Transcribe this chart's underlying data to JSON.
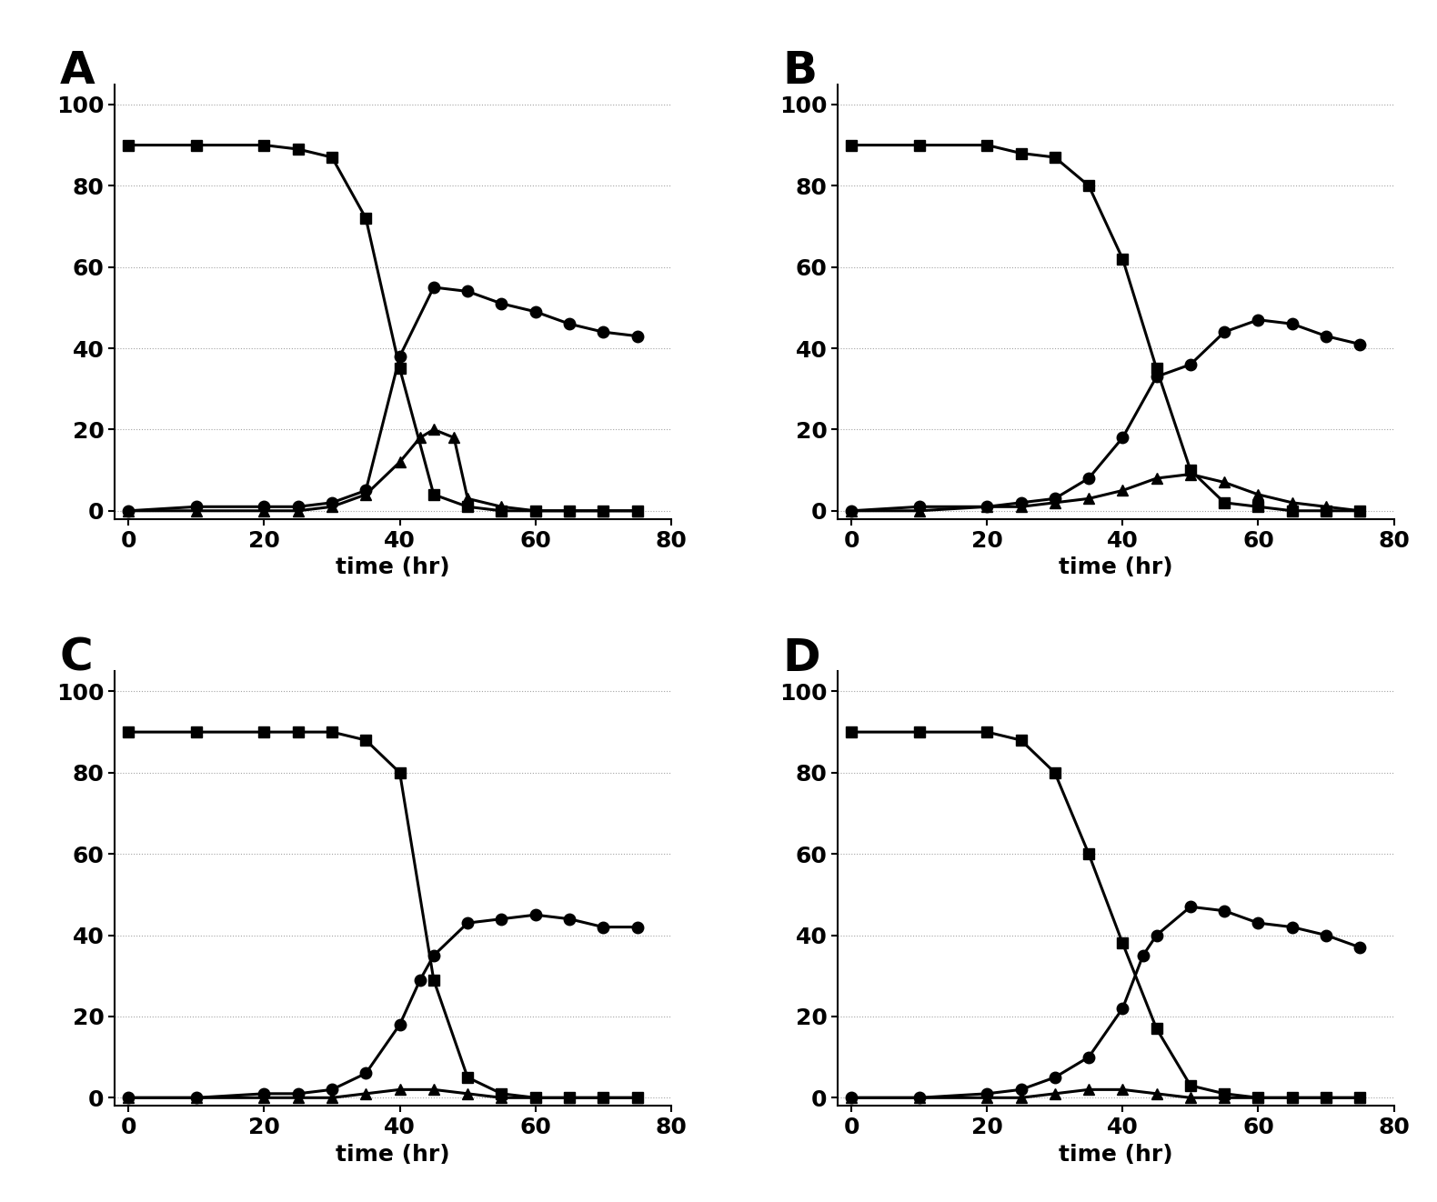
{
  "panels": [
    "A",
    "B",
    "C",
    "D"
  ],
  "background_color": "#ffffff",
  "grid_color": "#999999",
  "line_color": "#000000",
  "xlim": [
    -2,
    80
  ],
  "ylim": [
    -2,
    105
  ],
  "xticks": [
    0,
    20,
    40,
    60,
    80
  ],
  "yticks": [
    0,
    20,
    40,
    60,
    80,
    100
  ],
  "xlabel": "time (hr)",
  "panel_label_fontsize": 36,
  "axis_label_fontsize": 18,
  "tick_fontsize": 18,
  "linewidth": 2.2,
  "markersize": 9,
  "A": {
    "squares": {
      "x": [
        0,
        10,
        20,
        25,
        30,
        35,
        40,
        45,
        50,
        55,
        60,
        65,
        70,
        75
      ],
      "y": [
        90,
        90,
        90,
        89,
        87,
        72,
        35,
        4,
        1,
        0,
        0,
        0,
        0,
        0
      ]
    },
    "circles": {
      "x": [
        0,
        10,
        20,
        25,
        30,
        35,
        40,
        45,
        50,
        55,
        60,
        65,
        70,
        75
      ],
      "y": [
        0,
        1,
        1,
        1,
        2,
        5,
        38,
        55,
        54,
        51,
        49,
        46,
        44,
        43
      ]
    },
    "triangles": {
      "x": [
        0,
        10,
        20,
        25,
        30,
        35,
        40,
        43,
        45,
        48,
        50,
        55,
        60,
        65,
        70,
        75
      ],
      "y": [
        0,
        0,
        0,
        0,
        1,
        4,
        12,
        18,
        20,
        18,
        3,
        1,
        0,
        0,
        0,
        0
      ]
    }
  },
  "B": {
    "squares": {
      "x": [
        0,
        10,
        20,
        25,
        30,
        35,
        40,
        45,
        50,
        55,
        60,
        65,
        70,
        75
      ],
      "y": [
        90,
        90,
        90,
        88,
        87,
        80,
        62,
        35,
        10,
        2,
        1,
        0,
        0,
        0
      ]
    },
    "circles": {
      "x": [
        0,
        10,
        20,
        25,
        30,
        35,
        40,
        45,
        50,
        55,
        60,
        65,
        70,
        75
      ],
      "y": [
        0,
        1,
        1,
        2,
        3,
        8,
        18,
        33,
        36,
        44,
        47,
        46,
        43,
        41
      ]
    },
    "triangles": {
      "x": [
        0,
        10,
        20,
        25,
        30,
        35,
        40,
        45,
        50,
        55,
        60,
        65,
        70,
        75
      ],
      "y": [
        0,
        0,
        1,
        1,
        2,
        3,
        5,
        8,
        9,
        7,
        4,
        2,
        1,
        0
      ]
    }
  },
  "C": {
    "squares": {
      "x": [
        0,
        10,
        20,
        25,
        30,
        35,
        40,
        45,
        50,
        55,
        60,
        65,
        70,
        75
      ],
      "y": [
        90,
        90,
        90,
        90,
        90,
        88,
        80,
        29,
        5,
        1,
        0,
        0,
        0,
        0
      ]
    },
    "circles": {
      "x": [
        0,
        10,
        20,
        25,
        30,
        35,
        40,
        43,
        45,
        50,
        55,
        60,
        65,
        70,
        75
      ],
      "y": [
        0,
        0,
        1,
        1,
        2,
        6,
        18,
        29,
        35,
        43,
        44,
        45,
        44,
        42,
        42
      ]
    },
    "triangles": {
      "x": [
        0,
        10,
        20,
        25,
        30,
        35,
        40,
        45,
        50,
        55,
        60,
        65,
        70,
        75
      ],
      "y": [
        0,
        0,
        0,
        0,
        0,
        1,
        2,
        2,
        1,
        0,
        0,
        0,
        0,
        0
      ]
    }
  },
  "D": {
    "squares": {
      "x": [
        0,
        10,
        20,
        25,
        30,
        35,
        40,
        45,
        50,
        55,
        60,
        65,
        70,
        75
      ],
      "y": [
        90,
        90,
        90,
        88,
        80,
        60,
        38,
        17,
        3,
        1,
        0,
        0,
        0,
        0
      ]
    },
    "circles": {
      "x": [
        0,
        10,
        20,
        25,
        30,
        35,
        40,
        43,
        45,
        50,
        55,
        60,
        65,
        70,
        75
      ],
      "y": [
        0,
        0,
        1,
        2,
        5,
        10,
        22,
        35,
        40,
        47,
        46,
        43,
        42,
        40,
        37
      ]
    },
    "triangles": {
      "x": [
        0,
        10,
        20,
        25,
        30,
        35,
        40,
        45,
        50,
        55,
        60,
        65,
        70,
        75
      ],
      "y": [
        0,
        0,
        0,
        0,
        1,
        2,
        2,
        1,
        0,
        0,
        0,
        0,
        0,
        0
      ]
    }
  }
}
